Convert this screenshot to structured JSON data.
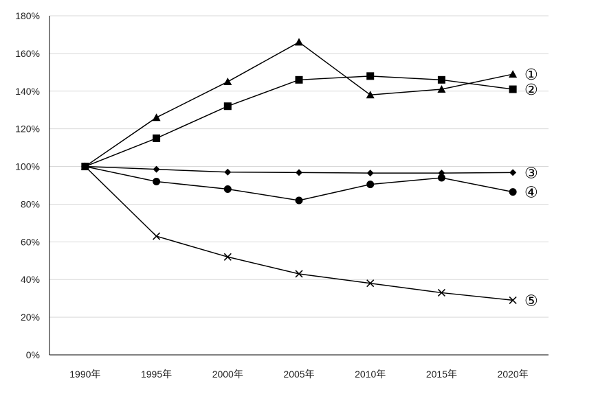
{
  "chart_data": {
    "type": "line",
    "categories": [
      "1990年",
      "1995年",
      "2000年",
      "2005年",
      "2010年",
      "2015年",
      "2020年"
    ],
    "ylim": [
      0,
      180
    ],
    "yticks": [
      0,
      20,
      40,
      60,
      80,
      100,
      120,
      140,
      160,
      180
    ],
    "ytick_labels": [
      "0%",
      "20%",
      "40%",
      "60%",
      "80%",
      "100%",
      "120%",
      "140%",
      "160%",
      "180%"
    ],
    "grid": "horizontal",
    "series": [
      {
        "label": "①",
        "marker": "triangle",
        "values": [
          100,
          126,
          145,
          166,
          138,
          141,
          149
        ]
      },
      {
        "label": "②",
        "marker": "square",
        "values": [
          100,
          115,
          132,
          146,
          148,
          146,
          141
        ]
      },
      {
        "label": "③",
        "marker": "diamond",
        "values": [
          100,
          98.5,
          97,
          96.8,
          96.5,
          96.5,
          96.8
        ]
      },
      {
        "label": "④",
        "marker": "circle",
        "values": [
          100,
          92,
          88,
          82,
          90.5,
          94,
          86.5
        ]
      },
      {
        "label": "⑤",
        "marker": "x",
        "values": [
          100,
          63,
          52,
          43,
          38,
          33,
          29
        ]
      }
    ],
    "colors": {
      "line": "#000000",
      "grid": "#d9d9d9",
      "axis": "#000000"
    }
  }
}
